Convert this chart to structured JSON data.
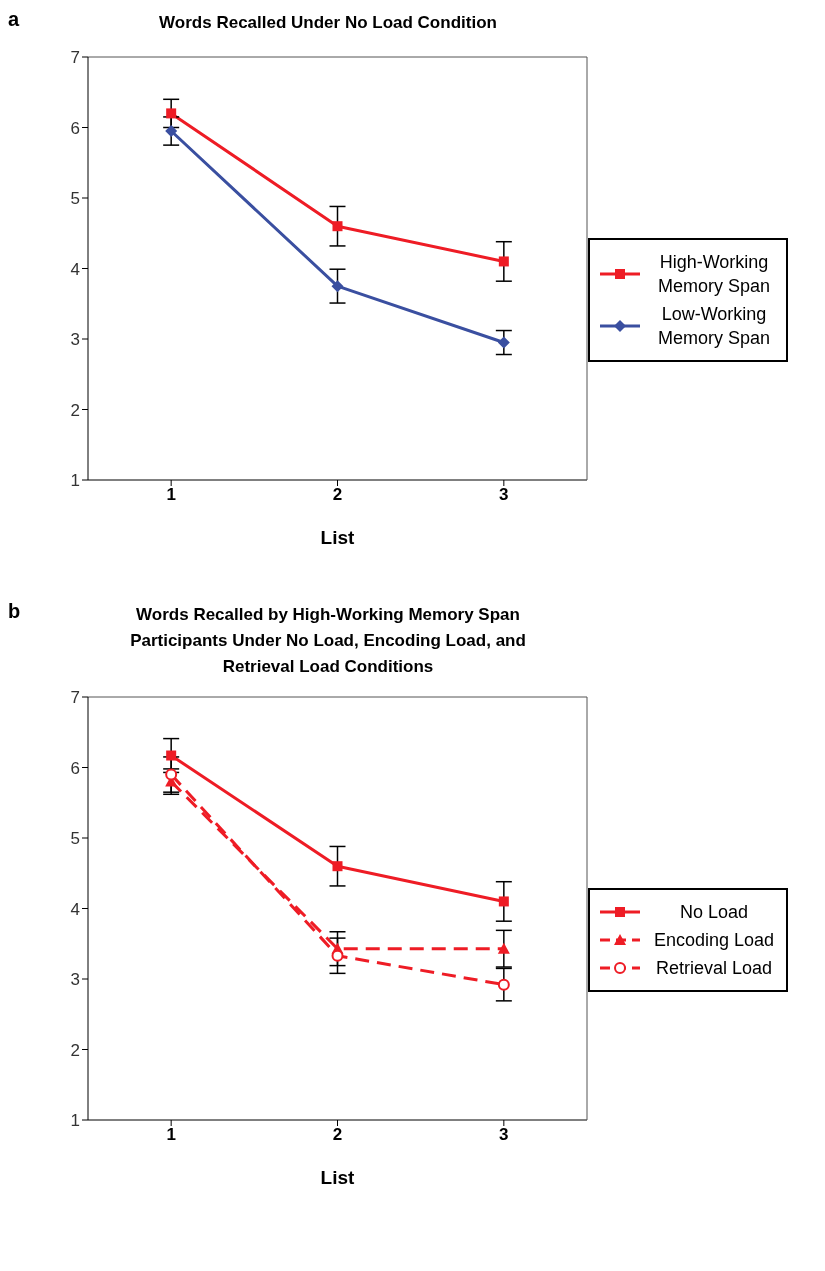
{
  "chart_data": [
    {
      "type": "line",
      "title": "Words Recalled Under No Load Condition",
      "annotations": [
        "a"
      ],
      "xlabel": "List",
      "categories": [
        "1",
        "2",
        "3"
      ],
      "ylim": [
        1,
        7
      ],
      "yticks": [
        1,
        2,
        3,
        4,
        5,
        6,
        7
      ],
      "legend": "right",
      "line_style": "solid",
      "series": [
        {
          "name": "High-Working Memory Span",
          "color": "#ee1c25",
          "marker": "square",
          "values": [
            6.2,
            4.6,
            4.1
          ],
          "errors": [
            0.2,
            0.28,
            0.28
          ]
        },
        {
          "name": "Low-Working Memory Span",
          "color": "#3a4fa0",
          "marker": "diamond",
          "values": [
            5.95,
            3.75,
            2.95
          ],
          "errors": [
            0.2,
            0.24,
            0.17
          ]
        }
      ]
    },
    {
      "type": "line",
      "title": "Words Recalled by High-Working Memory Span Participants Under No Load, Encoding Load, and Retrieval Load Conditions",
      "annotations": [
        "b"
      ],
      "xlabel": "List",
      "categories": [
        "1",
        "2",
        "3"
      ],
      "ylim": [
        1,
        7
      ],
      "yticks": [
        1,
        2,
        3,
        4,
        5,
        6,
        7
      ],
      "legend": "right",
      "series": [
        {
          "name": "No Load",
          "color": "#ee1c25",
          "marker": "square",
          "line_style": "solid",
          "values": [
            6.17,
            4.6,
            4.1
          ],
          "errors": [
            0.24,
            0.28,
            0.28
          ]
        },
        {
          "name": "Encoding Load",
          "color": "#ee1c25",
          "marker": "triangle",
          "line_style": "dashed",
          "values": [
            5.8,
            3.43,
            3.43
          ],
          "errors": [
            0.18,
            0.24,
            0.26
          ]
        },
        {
          "name": "Retrieval Load",
          "color": "#ee1c25",
          "marker": "circle",
          "line_style": "dashed",
          "values": [
            5.9,
            3.33,
            2.92
          ],
          "errors": [
            0.25,
            0.25,
            0.23
          ]
        }
      ]
    }
  ]
}
